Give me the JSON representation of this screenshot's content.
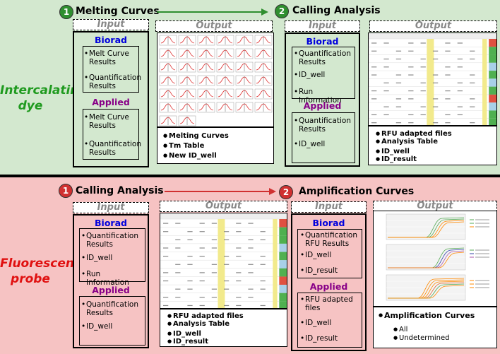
{
  "top": {
    "side_label_line1": "Intercalating",
    "side_label_line2": "dye",
    "step1": {
      "num": "1",
      "title": "Melting Curves"
    },
    "step2": {
      "num": "2",
      "title": "Calling Analysis"
    },
    "col1": {
      "input_header": "Input",
      "output_header": "Output",
      "biorad_title": "Biorad",
      "biorad_items": [
        "Melt Curve Results",
        "Quantification Results"
      ],
      "applied_title": "Applied",
      "applied_items": [
        "Melt Curve Results",
        "Quantification Results"
      ],
      "output_items": [
        "Melting Curves",
        "Tm Table",
        "New ID_well"
      ]
    },
    "col2": {
      "input_header": "Input",
      "output_header": "Output",
      "biorad_title": "Biorad",
      "biorad_items": [
        "Quantification Results",
        "ID_well",
        "Run Information"
      ],
      "applied_title": "Applied",
      "applied_items": [
        "Quantification Results",
        "ID_well"
      ],
      "output_items": [
        "RFU adapted files",
        "Analysis Table",
        "ID_well",
        "ID_result"
      ]
    }
  },
  "bottom": {
    "side_label_line1": "Fluorescent",
    "side_label_line2": "probe",
    "step1": {
      "num": "1",
      "title": "Calling Analysis"
    },
    "step2": {
      "num": "2",
      "title": "Amplification Curves"
    },
    "col1": {
      "input_header": "Input",
      "output_header": "Output",
      "biorad_title": "Biorad",
      "biorad_items": [
        "Quantification Results",
        "ID_well",
        "Run Information"
      ],
      "applied_title": "Applied",
      "applied_items": [
        "Quantification Results",
        "ID_well"
      ],
      "output_items": [
        "RFU adapted files",
        "Analysis Table",
        "ID_well",
        "ID_result"
      ]
    },
    "col2": {
      "input_header": "Input",
      "output_header": "Output",
      "biorad_title": "Biorad",
      "biorad_items": [
        "Quantification RFU Results",
        "ID_well",
        "ID_result"
      ],
      "applied_title": "Applied",
      "applied_items": [
        "RFU adapted files",
        "ID_well",
        "ID_result"
      ],
      "output_title": "Amplification Curves",
      "output_sub_items": [
        "All",
        "Undetermined"
      ]
    }
  },
  "colors": {
    "green_panel": "#d3e8cf",
    "red_panel": "#f6c3c3",
    "green_step": "#2f8f2f",
    "red_step": "#d03030",
    "green_label": "#1f9a1f",
    "red_label": "#e01010"
  }
}
